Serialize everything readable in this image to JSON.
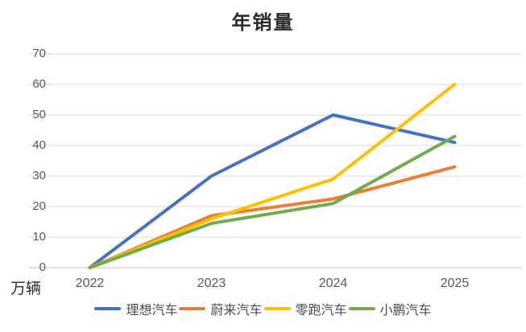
{
  "chart_data": {
    "type": "line",
    "title": "年销量",
    "unit_label": "万辆",
    "categories": [
      "2022",
      "2023",
      "2024",
      "2025"
    ],
    "series": [
      {
        "name": "理想汽车",
        "color": "#4472C4",
        "values": [
          0,
          30,
          50,
          41
        ]
      },
      {
        "name": "蔚来汽车",
        "color": "#ED7D31",
        "values": [
          0,
          17,
          22.5,
          33
        ]
      },
      {
        "name": "零跑汽车",
        "color": "#FFC000",
        "values": [
          0,
          16,
          29,
          60
        ]
      },
      {
        "name": "小鹏汽车",
        "color": "#70AD47",
        "values": [
          0,
          14.5,
          21,
          43
        ]
      }
    ],
    "ylim": [
      0,
      70
    ],
    "ytick_step": 10,
    "yticks": [
      "0",
      "10",
      "20",
      "30",
      "40",
      "50",
      "60",
      "70"
    ],
    "grid": true,
    "legend_position": "bottom"
  },
  "style_colors": {
    "gridline": "#d9d9d9",
    "zero_axis": "#c6c6c6",
    "tick_text": "#595959",
    "title_text": "#2b2b2b"
  }
}
